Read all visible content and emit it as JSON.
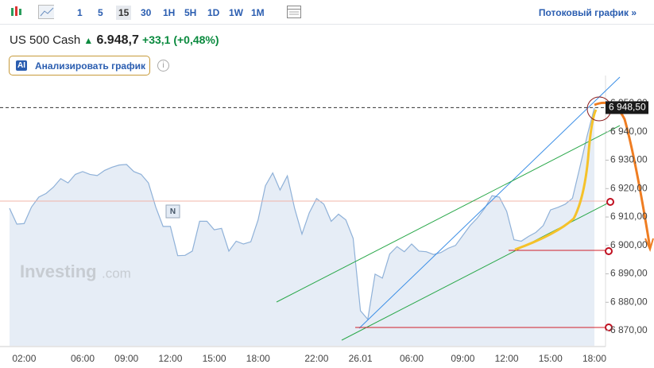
{
  "toolbar": {
    "intervals": [
      "1",
      "5",
      "15",
      "30",
      "1H",
      "5H",
      "1D",
      "1W",
      "1M"
    ],
    "active": "15",
    "streaming_link": "Потоковый график »"
  },
  "quote": {
    "name": "US 500 Cash",
    "price": "6.948,7",
    "change": "+33,1 (+0,48%)"
  },
  "analyze_button": {
    "badge": "AI",
    "label": "Анализировать график",
    "info": "i"
  },
  "watermark": {
    "brand": "Investing",
    "suffix": ".com"
  },
  "news_marker": "N",
  "chart_data": {
    "type": "area",
    "color": "#8fb1d8",
    "fill": "#e6edf6",
    "categories": [
      null,
      null,
      "02:00",
      null,
      null,
      null,
      null,
      null,
      null,
      null,
      "06:00",
      null,
      null,
      null,
      null,
      null,
      "09:00",
      null,
      null,
      null,
      null,
      null,
      "12:00",
      null,
      null,
      null,
      null,
      null,
      "15:00",
      null,
      null,
      null,
      null,
      null,
      "18:00",
      null,
      null,
      null,
      null,
      null,
      null,
      null,
      "22:00",
      null,
      null,
      null,
      null,
      null,
      "26.01",
      null,
      null,
      null,
      null,
      null,
      null,
      "06:00",
      null,
      null,
      null,
      null,
      null,
      null,
      "09:00",
      null,
      null,
      null,
      null,
      null,
      "12:00",
      null,
      null,
      null,
      null,
      null,
      "15:00",
      null,
      null,
      null,
      null,
      null,
      "18:00"
    ],
    "values": [
      6913.1,
      6907.5,
      6907.7,
      6913.5,
      6917,
      6918.3,
      6920.5,
      6923.5,
      6922,
      6925,
      6926,
      6925,
      6924.6,
      6926.4,
      6927.5,
      6928.3,
      6928.5,
      6926,
      6925,
      6922,
      6913.5,
      6906.7,
      6906.7,
      6896.4,
      6896.5,
      6898,
      6908.5,
      6908.5,
      6905.5,
      6906,
      6898,
      6901.5,
      6900.5,
      6901.3,
      6909,
      6921,
      6925.5,
      6919.5,
      6924.5,
      6913,
      6904,
      6911.5,
      6916.5,
      6914.5,
      6908.5,
      6911,
      6909,
      6902.5,
      6877,
      6874,
      6889.9,
      6888.5,
      6897,
      6899.6,
      6897.8,
      6900.5,
      6898,
      6897.8,
      6896.8,
      6897.5,
      6899,
      6900,
      6903.5,
      6907,
      6909.7,
      6913.1,
      6917.5,
      6917,
      6912,
      6902,
      6901.5,
      6903.2,
      6904.6,
      6907,
      6912.5,
      6913.4,
      6914.5,
      6916.6,
      6927.4,
      6938.5,
      6948.5
    ],
    "ylim": [
      6864.7,
      6959.8
    ],
    "yticks": [
      {
        "value": 6870,
        "label": "6 870,00"
      },
      {
        "value": 6880,
        "label": "6 880,00"
      },
      {
        "value": 6890,
        "label": "6 890,00"
      },
      {
        "value": 6900,
        "label": "6 900,00"
      },
      {
        "value": 6910,
        "label": "6 910,00"
      },
      {
        "value": 6920,
        "label": "6 920,00"
      },
      {
        "value": 6930,
        "label": "6 930,00"
      },
      {
        "value": 6940,
        "label": "6 940,00"
      },
      {
        "value": 6950,
        "label": "6 950,00"
      }
    ],
    "current_price": 6948.5,
    "current_price_label": "6 948,50",
    "prev_close_line": 6915.6
  }
}
